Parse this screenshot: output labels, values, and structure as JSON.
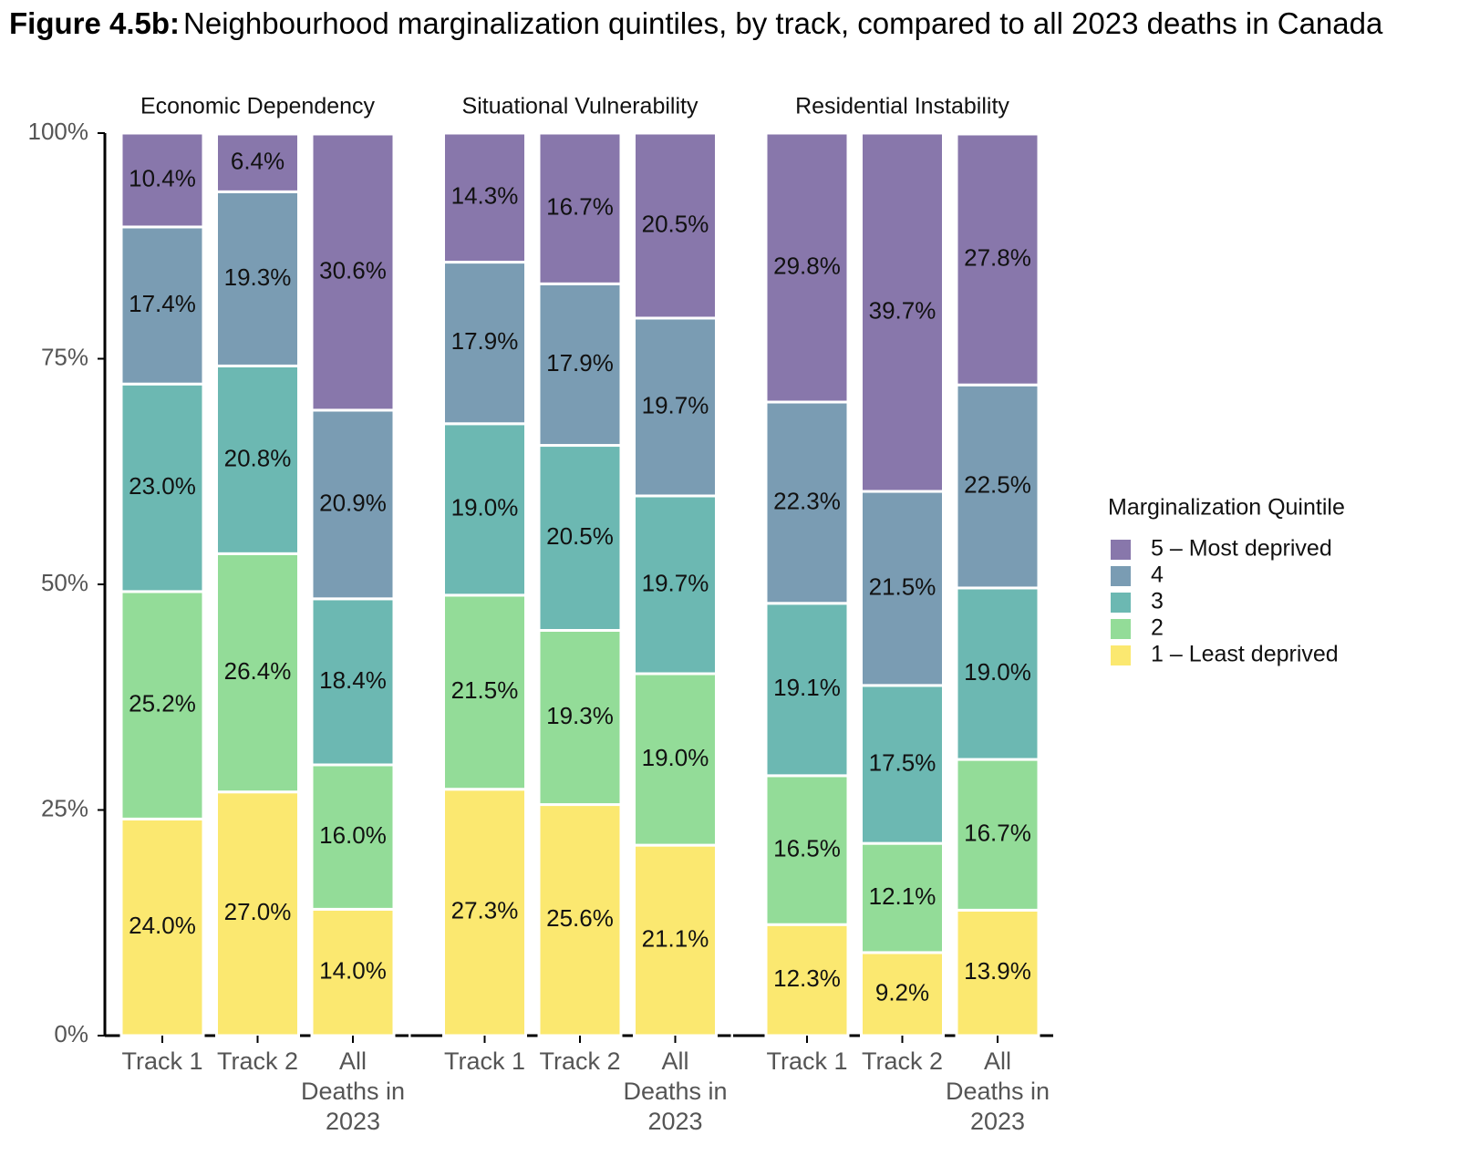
{
  "chart_data": {
    "type": "bar",
    "stacked": true,
    "label": "Figure 4.5b:",
    "title": "Neighbourhood marginalization quintiles, by track, compared to all 2023 deaths in Canada",
    "categories": [
      "Track 1",
      "Track 2",
      "All Deaths in 2023"
    ],
    "ylim": [
      0,
      100
    ],
    "yticks": [
      {
        "value": 0,
        "label": "0%"
      },
      {
        "value": 25,
        "label": "25%"
      },
      {
        "value": 50,
        "label": "50%"
      },
      {
        "value": 75,
        "label": "75%"
      },
      {
        "value": 100,
        "label": "100%"
      }
    ],
    "legend_title": "Marginalization Quintile",
    "legend": "right",
    "series": [
      {
        "name": "1 – Least deprived",
        "color": "#fbe870"
      },
      {
        "name": "2",
        "color": "#93dc98"
      },
      {
        "name": "3",
        "color": "#6cb8b2"
      },
      {
        "name": "4",
        "color": "#7a9cb3"
      },
      {
        "name": "5 – Most deprived",
        "color": "#8877ab"
      }
    ],
    "panels": [
      {
        "title": "Economic Dependency",
        "series": [
          {
            "values": [
              24.0,
              27.0,
              14.0
            ],
            "value_labels": [
              "24.0%",
              "27.0%",
              "14.0%"
            ]
          },
          {
            "values": [
              25.2,
              26.4,
              16.0
            ],
            "value_labels": [
              "25.2%",
              "26.4%",
              "16.0%"
            ]
          },
          {
            "values": [
              23.0,
              20.8,
              18.4
            ],
            "value_labels": [
              "23.0%",
              "20.8%",
              "18.4%"
            ]
          },
          {
            "values": [
              17.4,
              19.3,
              20.9
            ],
            "value_labels": [
              "17.4%",
              "19.3%",
              "20.9%"
            ]
          },
          {
            "values": [
              10.4,
              6.4,
              30.6
            ],
            "value_labels": [
              "10.4%",
              "6.4%",
              "30.6%"
            ]
          }
        ]
      },
      {
        "title": "Situational Vulnerability",
        "series": [
          {
            "values": [
              27.3,
              25.6,
              21.1
            ],
            "value_labels": [
              "27.3%",
              "25.6%",
              "21.1%"
            ]
          },
          {
            "values": [
              21.5,
              19.3,
              19.0
            ],
            "value_labels": [
              "21.5%",
              "19.3%",
              "19.0%"
            ]
          },
          {
            "values": [
              19.0,
              20.5,
              19.7
            ],
            "value_labels": [
              "19.0%",
              "20.5%",
              "19.7%"
            ]
          },
          {
            "values": [
              17.9,
              17.9,
              19.7
            ],
            "value_labels": [
              "17.9%",
              "17.9%",
              "19.7%"
            ]
          },
          {
            "values": [
              14.3,
              16.7,
              20.5
            ],
            "value_labels": [
              "14.3%",
              "16.7%",
              "20.5%"
            ]
          }
        ]
      },
      {
        "title": "Residential Instability",
        "series": [
          {
            "values": [
              12.3,
              9.2,
              13.9
            ],
            "value_labels": [
              "12.3%",
              "9.2%",
              "13.9%"
            ]
          },
          {
            "values": [
              16.5,
              12.1,
              16.7
            ],
            "value_labels": [
              "16.5%",
              "12.1%",
              "16.7%"
            ]
          },
          {
            "values": [
              19.1,
              17.5,
              19.0
            ],
            "value_labels": [
              "19.1%",
              "17.5%",
              "19.0%"
            ]
          },
          {
            "values": [
              22.3,
              21.5,
              22.5
            ],
            "value_labels": [
              "22.3%",
              "21.5%",
              "22.5%"
            ]
          },
          {
            "values": [
              29.8,
              39.7,
              27.8
            ],
            "value_labels": [
              "29.8%",
              "39.7%",
              "27.8%"
            ]
          }
        ]
      }
    ]
  }
}
